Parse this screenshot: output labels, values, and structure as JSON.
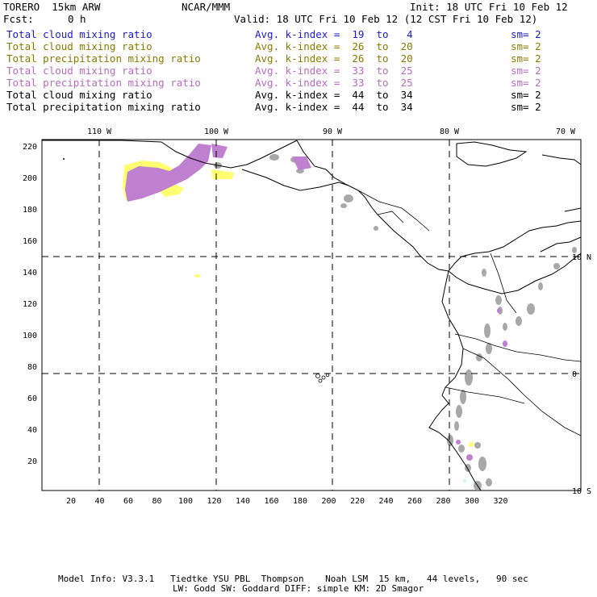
{
  "header": {
    "model": "TORERO  15km ARW",
    "org": "NCAR/MMM",
    "init": "Init: 18 UTC Fri 10 Feb 12",
    "fcst_label": "Fcst:",
    "fcst_value": "0 h",
    "valid": "Valid: 18 UTC Fri 10 Feb 12 (12 CST Fri 10 Feb 12)"
  },
  "legend": [
    {
      "field": "Total cloud mixing ratio",
      "avg": "Avg. k-index =  19  to   4",
      "sm": "sm= 2",
      "color": "#1a1acc"
    },
    {
      "field": "Total cloud mixing ratio",
      "avg": "Avg. k-index =  26  to  20",
      "sm": "sm= 2",
      "color": "#8a7a00"
    },
    {
      "field": "Total precipitation mixing ratio",
      "avg": "Avg. k-index =  26  to  20",
      "sm": "sm= 2",
      "color": "#8a7a00"
    },
    {
      "field": "Total cloud mixing ratio",
      "avg": "Avg. k-index =  33  to  25",
      "sm": "sm= 2",
      "color": "#b86bc2"
    },
    {
      "field": "Total precipitation mixing ratio",
      "avg": "Avg. k-index =  33  to  25",
      "sm": "sm= 2",
      "color": "#b86bc2"
    },
    {
      "field": "Total cloud mixing ratio",
      "avg": "Avg. k-index =  44  to  34",
      "sm": "sm= 2",
      "color": "#000000"
    },
    {
      "field": "Total precipitation mixing ratio",
      "avg": "Avg. k-index =  44  to  34",
      "sm": "sm= 2",
      "color": "#000000"
    }
  ],
  "map": {
    "lon_labels": [
      "110 W",
      "100 W",
      "90 W",
      "80 W",
      "70 W"
    ],
    "lat_labels": [
      "10 N",
      "0",
      "10 S"
    ],
    "x_ticks": [
      "20",
      "40",
      "60",
      "80",
      "100",
      "120",
      "140",
      "160",
      "180",
      "200",
      "220",
      "240",
      "260",
      "280",
      "300",
      "320"
    ],
    "y_ticks": [
      "220",
      "200",
      "180",
      "160",
      "140",
      "120",
      "100",
      "80",
      "60",
      "40",
      "20"
    ],
    "colors": {
      "gray": "#a8a8a8",
      "yellow": "#ffff70",
      "purple": "#c080d0",
      "cyan": "#c8f4f4"
    }
  },
  "footer": {
    "line1": "Model Info: V3.3.1   Tiedtke YSU PBL  Thompson    Noah LSM  15 km,   44 levels,   90 sec",
    "line2": "LW: Godd SW: Goddard DIFF: simple KM: 2D Smagor"
  }
}
